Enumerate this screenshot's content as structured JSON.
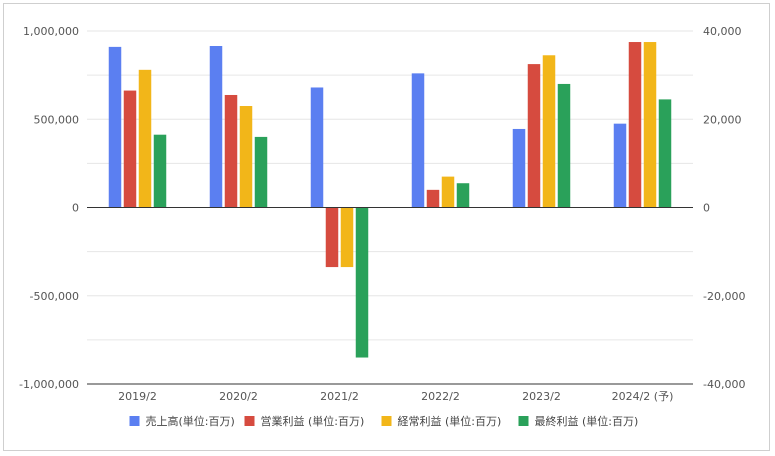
{
  "chart_data": {
    "type": "bar",
    "title": "",
    "xlabel": "",
    "ylabel": "",
    "categories": [
      "2019/2",
      "2020/2",
      "2021/2",
      "2022/2",
      "2023/2",
      "2024/2 (予)"
    ],
    "left_axis": {
      "ylim": [
        -1000000,
        1000000
      ],
      "ticks": [
        1000000,
        500000,
        0,
        -500000,
        -1000000
      ],
      "tick_labels": [
        "1,000,000",
        "500,000",
        "0",
        "-500,000",
        "-1,000,000"
      ]
    },
    "right_axis": {
      "ylim": [
        -40000,
        40000
      ],
      "ticks": [
        40000,
        20000,
        0,
        -20000,
        -40000
      ],
      "tick_labels": [
        "40,000",
        "20,000",
        "0",
        "-20,000",
        "-40,000"
      ]
    },
    "series": [
      {
        "name": "売上高(単位:百万)",
        "axis": "left",
        "color": "#5b7ff1",
        "values": [
          910000,
          915000,
          680000,
          760000,
          445000,
          475000
        ]
      },
      {
        "name": "営業利益 (単位:百万)",
        "axis": "right",
        "color": "#d64b3f",
        "values": [
          26500,
          25500,
          -13500,
          4000,
          32500,
          37500
        ]
      },
      {
        "name": "経常利益 (単位:百万)",
        "axis": "right",
        "color": "#f2b619",
        "values": [
          31200,
          23000,
          -13500,
          7000,
          34500,
          37500
        ]
      },
      {
        "name": "最終利益 (単位:百万)",
        "axis": "right",
        "color": "#2aa15a",
        "values": [
          16500,
          16000,
          -34000,
          5500,
          28000,
          24500
        ]
      }
    ],
    "grid": true,
    "legend": "bottom"
  }
}
